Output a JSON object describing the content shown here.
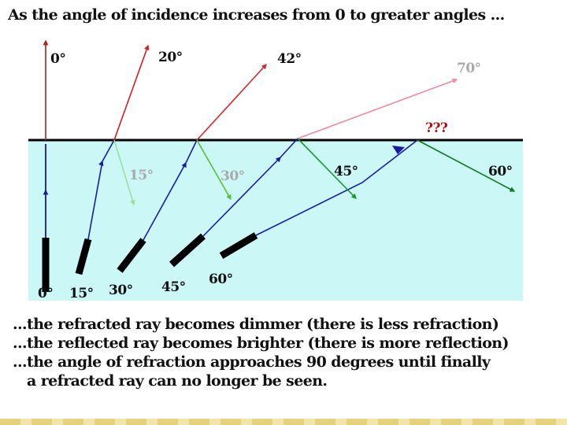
{
  "title": "As the angle of incidence increases from 0 to greater angles ...",
  "notes": [
    "...the refracted ray becomes dimmer (there is less refraction)",
    "...the reflected ray becomes brighter (there is more reflection)",
    "...the angle of refraction approaches 90 degrees until finally",
    "a refracted ray can no longer be seen."
  ],
  "colors": {
    "water": "#ccf7f7",
    "surface": "#000000",
    "incident_ray": "#1a1aa8",
    "refracted_0": "#b01c1c",
    "refracted_20": "#d41e1e",
    "refracted_42": "#d42828",
    "refracted_70": "#f08aa0",
    "reflected_15": "#9ae09a",
    "reflected_30": "#55c232",
    "reflected_45": "#149a2c",
    "reflected_60": "#0a7a1c",
    "question": "#b01010"
  },
  "incidence_labels": [
    "0°",
    "15°",
    "30°",
    "45°",
    "60°"
  ],
  "refraction_labels": [
    "0°",
    "20°",
    "42°",
    "70°",
    "???"
  ],
  "reflection_labels": [
    "15°",
    "30°",
    "45°",
    "60°"
  ]
}
